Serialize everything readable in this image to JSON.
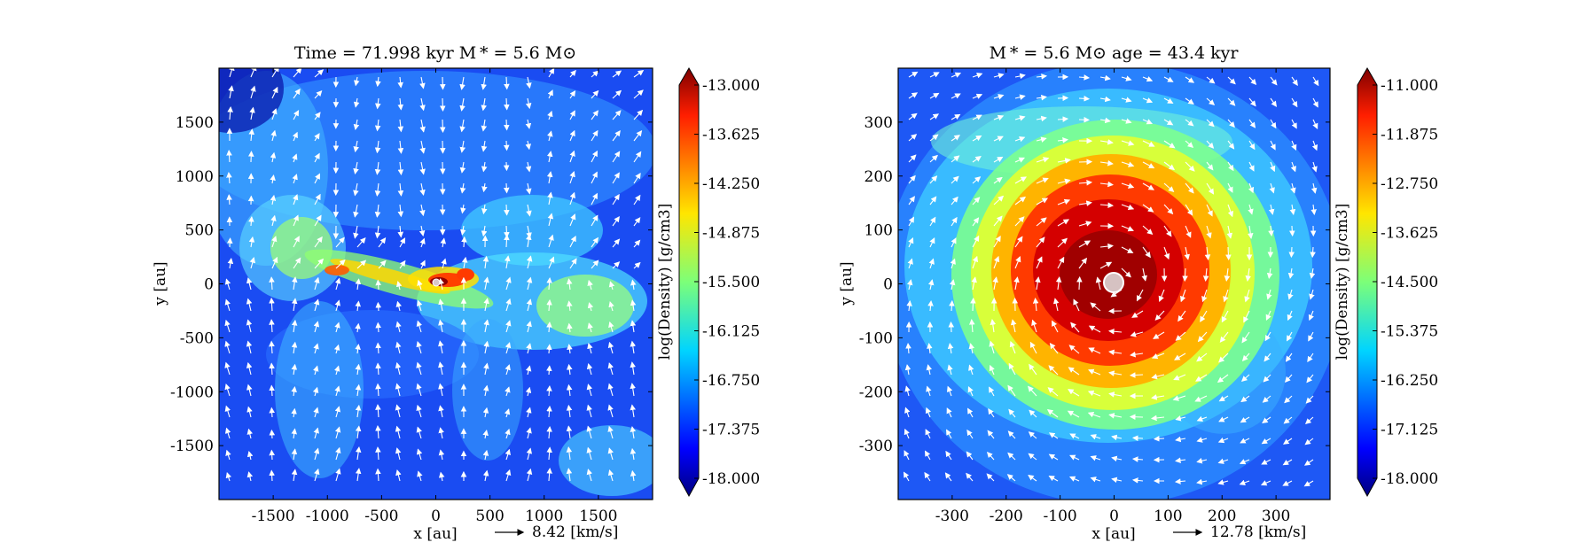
{
  "chart_data": [
    {
      "type": "heatmap",
      "title": "Time = 71.998 kyr    M * = 5.6 M⊙",
      "xlabel": "x [au]",
      "ylabel": "y [au]",
      "xlim": [
        -2000,
        2000
      ],
      "ylim": [
        -2000,
        2000
      ],
      "xticks": [
        -1500,
        -1000,
        -500,
        0,
        500,
        1000,
        1500
      ],
      "yticks": [
        -1500,
        -1000,
        -500,
        0,
        500,
        1000,
        1500
      ],
      "xtick_labels": [
        "-1500",
        "-1000",
        "-500",
        "0",
        "500",
        "1000",
        "1500"
      ],
      "ytick_labels": [
        "-1500",
        "-1000",
        "-500",
        "0",
        "500",
        "1000",
        "1500"
      ],
      "colorbar": {
        "label": "log(Density) [g/cm3]",
        "range": [
          -18.0,
          -13.0
        ],
        "ticks": [
          -13.0,
          -13.625,
          -14.25,
          -14.875,
          -15.5,
          -16.125,
          -16.75,
          -17.375,
          -18.0
        ],
        "tick_labels": [
          "-13.000",
          "-13.625",
          "-14.250",
          "-14.875",
          "-15.500",
          "-16.125",
          "-16.750",
          "-17.375",
          "-18.000"
        ],
        "colormap": "jet"
      },
      "vector_key": {
        "value": 8.42,
        "label": "8.42 [km/s]"
      },
      "sink": {
        "x": 0,
        "y": 0
      },
      "grid": false
    },
    {
      "type": "heatmap",
      "title": "M * = 5.6 M⊙          age = 43.4 kyr",
      "xlabel": "x [au]",
      "ylabel": "y [au]",
      "xlim": [
        -400,
        400
      ],
      "ylim": [
        -400,
        400
      ],
      "xticks": [
        -300,
        -200,
        -100,
        0,
        100,
        200,
        300
      ],
      "yticks": [
        -300,
        -200,
        -100,
        0,
        100,
        200,
        300
      ],
      "xtick_labels": [
        "-300",
        "-200",
        "-100",
        "0",
        "100",
        "200",
        "300"
      ],
      "ytick_labels": [
        "-300",
        "-200",
        "-100",
        "0",
        "100",
        "200",
        "300"
      ],
      "colorbar": {
        "label": "log(Density) [g/cm3]",
        "range": [
          -18.0,
          -11.0
        ],
        "ticks": [
          -11.0,
          -11.875,
          -12.75,
          -13.625,
          -14.5,
          -15.375,
          -16.25,
          -17.125,
          -18.0
        ],
        "tick_labels": [
          "-11.000",
          "-11.875",
          "-12.750",
          "-13.625",
          "-14.500",
          "-15.375",
          "-16.250",
          "-17.125",
          "-18.000"
        ],
        "colormap": "jet"
      },
      "vector_key": {
        "value": 12.78,
        "label": "12.78 [km/s]"
      },
      "sink": {
        "x": 0,
        "y": 0
      },
      "grid": false
    }
  ]
}
